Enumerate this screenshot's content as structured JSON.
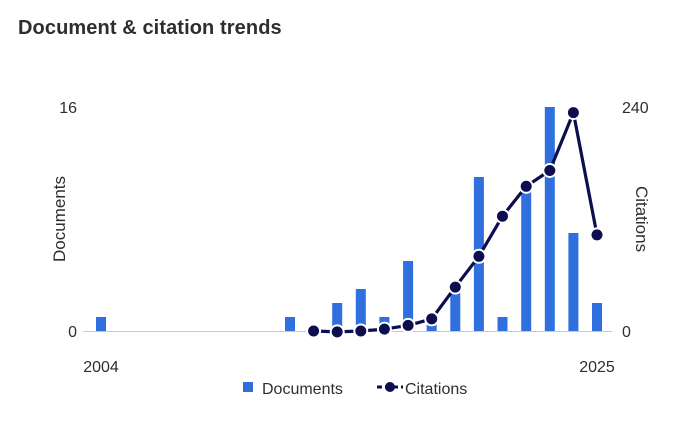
{
  "header": {
    "title": "Document & citation trends"
  },
  "chart_data": {
    "type": "bar+line",
    "x": [
      2004,
      2005,
      2006,
      2007,
      2008,
      2009,
      2010,
      2011,
      2012,
      2013,
      2014,
      2015,
      2016,
      2017,
      2018,
      2019,
      2020,
      2021,
      2022,
      2023,
      2024,
      2025
    ],
    "x_tick_labels": [
      "2004",
      "2025"
    ],
    "series": [
      {
        "name": "Documents",
        "type": "bar",
        "axis": "left",
        "color": "#2f6fde",
        "values": [
          1,
          0,
          0,
          0,
          0,
          0,
          0,
          0,
          1,
          0,
          2,
          3,
          1,
          5,
          1,
          3,
          11,
          1,
          10,
          16,
          7,
          2
        ]
      },
      {
        "name": "Citations",
        "type": "line",
        "axis": "right",
        "color": "#0c0e4f",
        "values": [
          null,
          null,
          null,
          null,
          null,
          null,
          null,
          null,
          null,
          0,
          -1,
          0,
          2,
          6,
          13,
          47,
          80,
          123,
          155,
          172,
          234,
          103
        ]
      }
    ],
    "y_left": {
      "label": "Documents",
      "range": [
        0,
        16
      ],
      "ticks": [
        "0",
        "16"
      ]
    },
    "y_right": {
      "label": "Citations",
      "range": [
        0,
        240
      ],
      "ticks": [
        "0",
        "240"
      ]
    },
    "legend": {
      "position": "bottom-center",
      "items": [
        "Documents",
        "Citations"
      ]
    },
    "grid": false
  }
}
